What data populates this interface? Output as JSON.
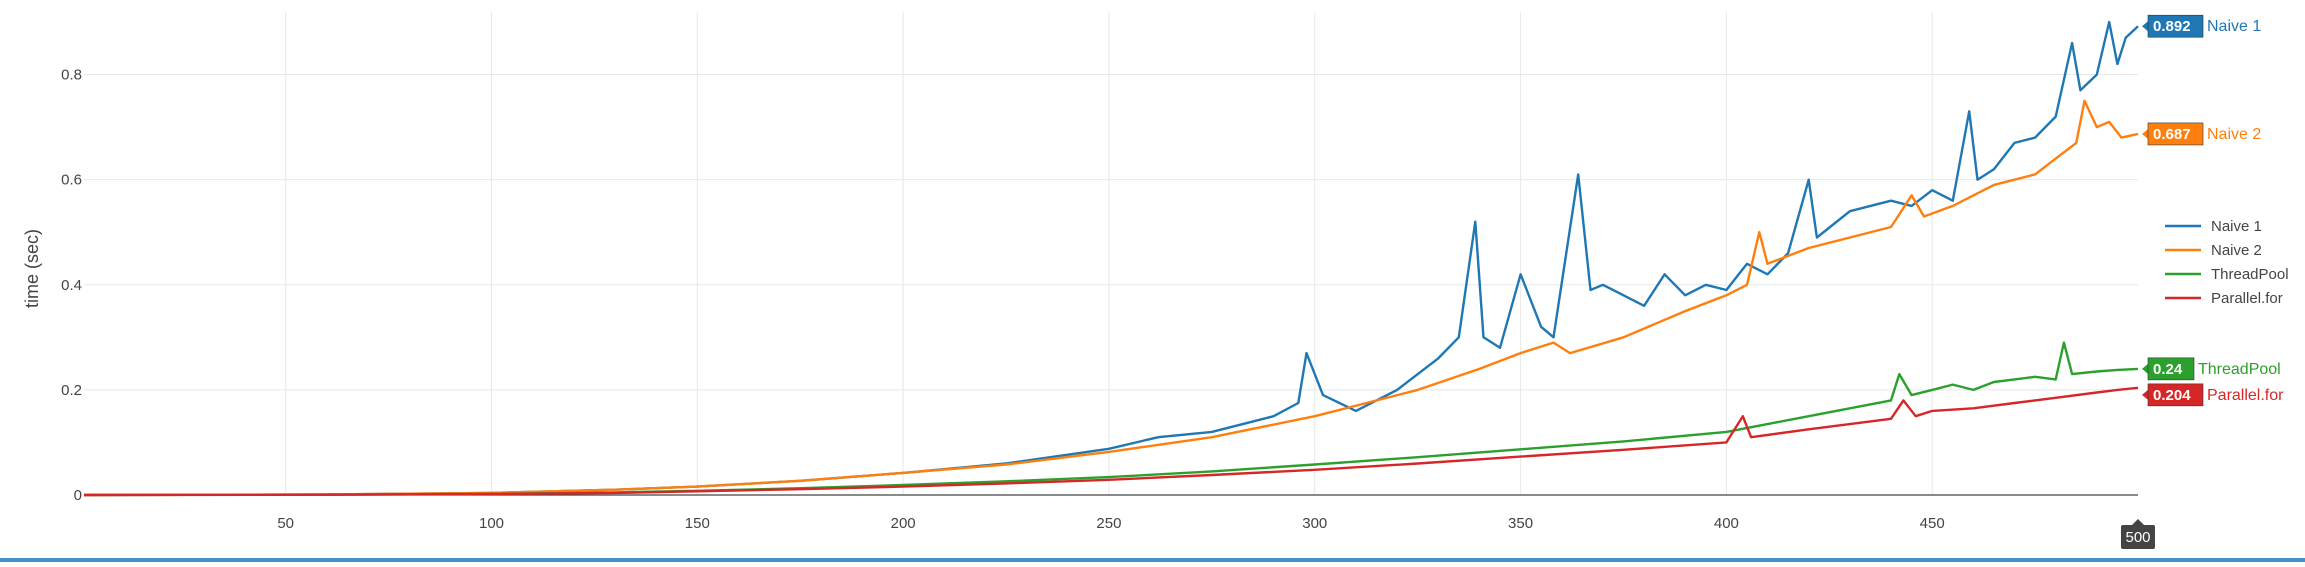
{
  "chart_data": {
    "type": "line",
    "title": "",
    "xlabel": "",
    "ylabel": "time (sec)",
    "xlim": [
      1,
      500
    ],
    "ylim": [
      0,
      0.9
    ],
    "x_ticks": [
      50,
      100,
      150,
      200,
      250,
      300,
      350,
      400,
      450
    ],
    "y_ticks": [
      0,
      0.2,
      0.4,
      0.6,
      0.8
    ],
    "y_tick_labels": [
      "0",
      "0.2",
      "0.4",
      "0.6",
      "0.8"
    ],
    "grid": true,
    "legend_position": "right",
    "hover_x_label": "500",
    "series": [
      {
        "name": "Naive 1",
        "color": "#1f77b4",
        "end_label": "0.892",
        "points": [
          [
            1,
            0.0
          ],
          [
            60,
            0.001
          ],
          [
            100,
            0.004
          ],
          [
            130,
            0.01
          ],
          [
            150,
            0.016
          ],
          [
            175,
            0.027
          ],
          [
            200,
            0.042
          ],
          [
            225,
            0.06
          ],
          [
            250,
            0.088
          ],
          [
            262,
            0.11
          ],
          [
            275,
            0.12
          ],
          [
            290,
            0.15
          ],
          [
            296,
            0.175
          ],
          [
            298,
            0.27
          ],
          [
            302,
            0.19
          ],
          [
            310,
            0.16
          ],
          [
            320,
            0.2
          ],
          [
            330,
            0.26
          ],
          [
            335,
            0.3
          ],
          [
            339,
            0.52
          ],
          [
            341,
            0.3
          ],
          [
            345,
            0.28
          ],
          [
            350,
            0.42
          ],
          [
            355,
            0.32
          ],
          [
            358,
            0.3
          ],
          [
            364,
            0.61
          ],
          [
            367,
            0.39
          ],
          [
            370,
            0.4
          ],
          [
            375,
            0.38
          ],
          [
            380,
            0.36
          ],
          [
            385,
            0.42
          ],
          [
            390,
            0.38
          ],
          [
            395,
            0.4
          ],
          [
            400,
            0.39
          ],
          [
            405,
            0.44
          ],
          [
            410,
            0.42
          ],
          [
            415,
            0.46
          ],
          [
            420,
            0.6
          ],
          [
            422,
            0.49
          ],
          [
            430,
            0.54
          ],
          [
            440,
            0.56
          ],
          [
            445,
            0.55
          ],
          [
            450,
            0.58
          ],
          [
            455,
            0.56
          ],
          [
            459,
            0.73
          ],
          [
            461,
            0.6
          ],
          [
            465,
            0.62
          ],
          [
            470,
            0.67
          ],
          [
            475,
            0.68
          ],
          [
            480,
            0.72
          ],
          [
            484,
            0.86
          ],
          [
            486,
            0.77
          ],
          [
            490,
            0.8
          ],
          [
            493,
            0.9
          ],
          [
            495,
            0.82
          ],
          [
            497,
            0.87
          ],
          [
            500,
            0.892
          ]
        ]
      },
      {
        "name": "Naive 2",
        "color": "#ff7f0e",
        "end_label": "0.687",
        "points": [
          [
            1,
            0.0
          ],
          [
            60,
            0.001
          ],
          [
            100,
            0.004
          ],
          [
            130,
            0.01
          ],
          [
            150,
            0.016
          ],
          [
            175,
            0.027
          ],
          [
            200,
            0.042
          ],
          [
            225,
            0.058
          ],
          [
            250,
            0.082
          ],
          [
            275,
            0.11
          ],
          [
            300,
            0.15
          ],
          [
            325,
            0.2
          ],
          [
            340,
            0.24
          ],
          [
            350,
            0.27
          ],
          [
            358,
            0.29
          ],
          [
            362,
            0.27
          ],
          [
            375,
            0.3
          ],
          [
            390,
            0.35
          ],
          [
            400,
            0.38
          ],
          [
            405,
            0.4
          ],
          [
            408,
            0.5
          ],
          [
            410,
            0.44
          ],
          [
            420,
            0.47
          ],
          [
            430,
            0.49
          ],
          [
            440,
            0.51
          ],
          [
            445,
            0.57
          ],
          [
            448,
            0.53
          ],
          [
            455,
            0.55
          ],
          [
            460,
            0.57
          ],
          [
            465,
            0.59
          ],
          [
            470,
            0.6
          ],
          [
            475,
            0.61
          ],
          [
            480,
            0.64
          ],
          [
            485,
            0.67
          ],
          [
            487,
            0.75
          ],
          [
            490,
            0.7
          ],
          [
            493,
            0.71
          ],
          [
            496,
            0.68
          ],
          [
            500,
            0.687
          ]
        ]
      },
      {
        "name": "ThreadPool",
        "color": "#2ca02c",
        "end_label": "0.24",
        "points": [
          [
            1,
            0.0
          ],
          [
            60,
            0.0005
          ],
          [
            100,
            0.002
          ],
          [
            130,
            0.005
          ],
          [
            150,
            0.008
          ],
          [
            175,
            0.013
          ],
          [
            200,
            0.019
          ],
          [
            225,
            0.026
          ],
          [
            250,
            0.034
          ],
          [
            275,
            0.045
          ],
          [
            300,
            0.058
          ],
          [
            325,
            0.072
          ],
          [
            350,
            0.087
          ],
          [
            375,
            0.102
          ],
          [
            400,
            0.12
          ],
          [
            410,
            0.135
          ],
          [
            420,
            0.15
          ],
          [
            430,
            0.165
          ],
          [
            440,
            0.18
          ],
          [
            442,
            0.23
          ],
          [
            445,
            0.19
          ],
          [
            450,
            0.2
          ],
          [
            455,
            0.21
          ],
          [
            460,
            0.2
          ],
          [
            465,
            0.215
          ],
          [
            470,
            0.22
          ],
          [
            475,
            0.225
          ],
          [
            480,
            0.22
          ],
          [
            482,
            0.29
          ],
          [
            484,
            0.23
          ],
          [
            490,
            0.235
          ],
          [
            495,
            0.238
          ],
          [
            500,
            0.24
          ]
        ]
      },
      {
        "name": "Parallel.for",
        "color": "#d62728",
        "end_label": "0.204",
        "points": [
          [
            1,
            0.0
          ],
          [
            60,
            0.0005
          ],
          [
            100,
            0.002
          ],
          [
            130,
            0.004
          ],
          [
            150,
            0.007
          ],
          [
            175,
            0.011
          ],
          [
            200,
            0.016
          ],
          [
            225,
            0.022
          ],
          [
            250,
            0.029
          ],
          [
            275,
            0.038
          ],
          [
            300,
            0.048
          ],
          [
            325,
            0.06
          ],
          [
            350,
            0.073
          ],
          [
            375,
            0.086
          ],
          [
            400,
            0.1
          ],
          [
            404,
            0.15
          ],
          [
            406,
            0.11
          ],
          [
            420,
            0.125
          ],
          [
            430,
            0.135
          ],
          [
            440,
            0.145
          ],
          [
            443,
            0.18
          ],
          [
            446,
            0.15
          ],
          [
            450,
            0.16
          ],
          [
            460,
            0.165
          ],
          [
            470,
            0.175
          ],
          [
            475,
            0.18
          ],
          [
            480,
            0.185
          ],
          [
            490,
            0.195
          ],
          [
            495,
            0.2
          ],
          [
            500,
            0.204
          ]
        ]
      }
    ]
  }
}
